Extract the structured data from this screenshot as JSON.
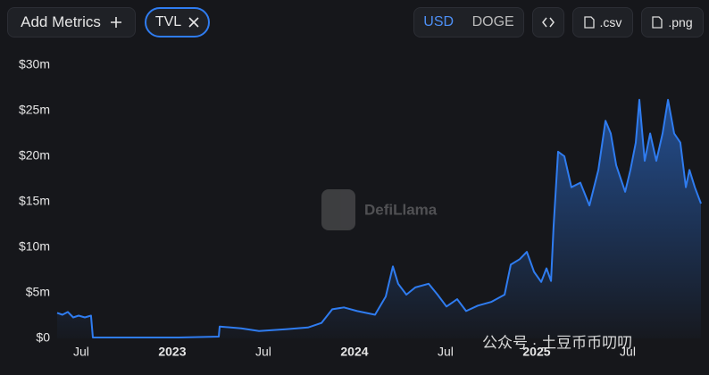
{
  "toolbar": {
    "add_metrics": "Add Metrics",
    "metric_pill": "TVL",
    "currency_options": [
      "USD",
      "DOGE"
    ],
    "csv": ".csv",
    "png": ".png"
  },
  "chart_data": {
    "type": "area",
    "watermark": "DefiLlama",
    "overlay_text": "公众号 · 土豆币币叨叨",
    "x": [
      2022.368,
      2022.397,
      2022.427,
      2022.456,
      2022.486,
      2022.52,
      2022.554,
      2022.564,
      2022.794,
      2023.035,
      2023.255,
      2023.26,
      2023.378,
      2023.476,
      2023.623,
      2023.745,
      2023.819,
      2023.878,
      2023.942,
      2024.015,
      2024.113,
      2024.172,
      2024.211,
      2024.24,
      2024.285,
      2024.334,
      2024.407,
      2024.456,
      2024.505,
      2024.564,
      2024.613,
      2024.677,
      2024.75,
      2024.824,
      2024.858,
      2024.907,
      2024.946,
      2024.986,
      2025.025,
      2025.054,
      2025.079,
      2025.093,
      2025.118,
      2025.152,
      2025.191,
      2025.24,
      2025.29,
      2025.339,
      2025.378,
      2025.407,
      2025.437,
      2025.486,
      2025.515,
      2025.544,
      2025.564,
      2025.593,
      2025.623,
      2025.657,
      2025.691,
      2025.721,
      2025.755,
      2025.789,
      2025.819,
      2025.839,
      2025.868,
      2025.902
    ],
    "series": [
      {
        "name": "TVL",
        "color": "#2f7cf0",
        "values": [
          2800000,
          2600000,
          2900000,
          2300000,
          2500000,
          2300000,
          2500000,
          100000,
          100000,
          100000,
          200000,
          1300000,
          1100000,
          800000,
          1000000,
          1200000,
          1700000,
          3200000,
          3400000,
          3000000,
          2600000,
          4600000,
          7900000,
          6000000,
          4800000,
          5600000,
          6000000,
          4800000,
          3500000,
          4300000,
          3000000,
          3600000,
          4000000,
          4800000,
          8100000,
          8700000,
          9500000,
          7300000,
          6200000,
          7700000,
          6300000,
          12200000,
          20500000,
          20000000,
          16600000,
          17100000,
          14600000,
          18500000,
          23900000,
          22500000,
          19000000,
          16100000,
          18500000,
          21500000,
          26200000,
          19500000,
          22500000,
          19500000,
          22500000,
          26200000,
          22500000,
          21500000,
          16600000,
          18500000,
          16600000,
          14800000
        ]
      }
    ],
    "xlim": [
      2022.368,
      2025.902
    ],
    "xticks": [
      {
        "value": 2022.5,
        "label": "Jul"
      },
      2023,
      {
        "value": 2023.5,
        "label": "Jul"
      },
      2024,
      {
        "value": 2024.5,
        "label": "Jul"
      },
      2025,
      {
        "value": 2025.5,
        "label": "Jul"
      }
    ],
    "ylim": [
      0,
      30000000
    ],
    "yticks": [
      {
        "value": 0,
        "label": "$0"
      },
      {
        "value": 5000000,
        "label": "$5m"
      },
      {
        "value": 10000000,
        "label": "$10m"
      },
      {
        "value": 15000000,
        "label": "$15m"
      },
      {
        "value": 20000000,
        "label": "$20m"
      },
      {
        "value": 25000000,
        "label": "$25m"
      },
      {
        "value": 30000000,
        "label": "$30m"
      }
    ]
  }
}
